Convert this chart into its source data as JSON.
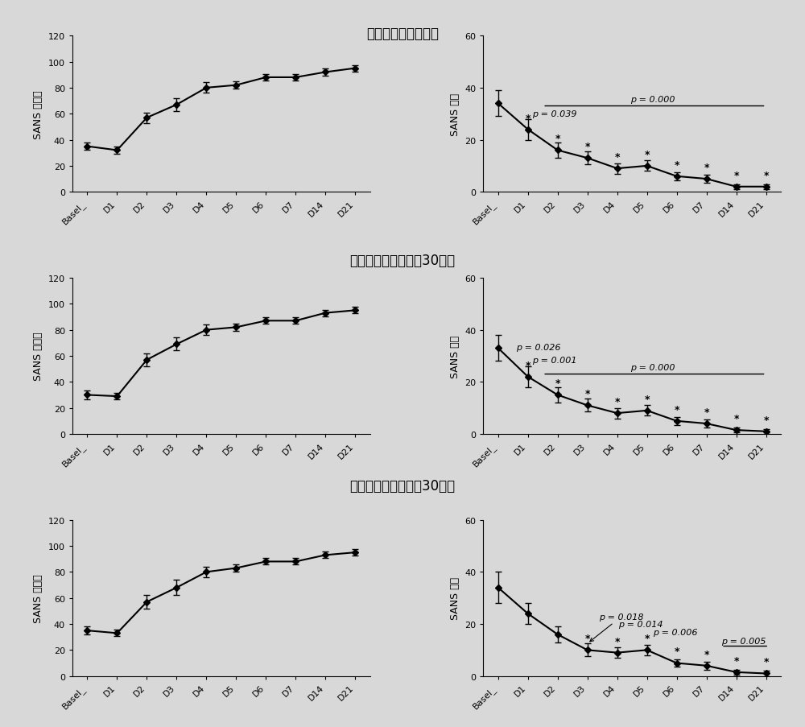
{
  "x_labels": [
    "Basel_",
    "D1",
    "D2",
    "D3",
    "D4",
    "D5",
    "D6",
    "D7",
    "D14",
    "D21"
  ],
  "x_indices": [
    0,
    1,
    2,
    3,
    4,
    5,
    6,
    7,
    8,
    9
  ],
  "left_ylabel": "SANS 减分率",
  "right_ylabel_1": "SANS 评分",
  "right_ylabel_23": "SANS 分数",
  "titles": [
    "阴性症状全部受试者",
    "距末次吸毒时间大于30天者",
    "距末次吸毒时间小于30天者"
  ],
  "left_y": [
    35,
    32,
    57,
    67,
    80,
    82,
    88,
    88,
    92,
    95
  ],
  "left_y_err": [
    3,
    2.5,
    4,
    5,
    4,
    3,
    2.5,
    2.5,
    2.5,
    2.5
  ],
  "left2_y": [
    30,
    29,
    57,
    69,
    80,
    82,
    87,
    87,
    93,
    95
  ],
  "left2_y_err": [
    3.5,
    2.5,
    5,
    5,
    4,
    3,
    2.5,
    2.5,
    2.5,
    2.5
  ],
  "left3_y": [
    35,
    33,
    57,
    68,
    80,
    83,
    88,
    88,
    93,
    95
  ],
  "left3_y_err": [
    3,
    2.5,
    5,
    6,
    4,
    3,
    2.5,
    2.5,
    2.5,
    2.5
  ],
  "right1_y": [
    34,
    24,
    16,
    13,
    9,
    10,
    6,
    5,
    2,
    2
  ],
  "right1_y_err": [
    5,
    4,
    3,
    2.5,
    2,
    2,
    1.5,
    1.5,
    1,
    1
  ],
  "right2_y": [
    33,
    22,
    15,
    11,
    8,
    9,
    5,
    4,
    1.5,
    1
  ],
  "right2_y_err": [
    5,
    4,
    3,
    2.5,
    2,
    2,
    1.5,
    1.5,
    1,
    1
  ],
  "right3_y": [
    34,
    24,
    16,
    10,
    9,
    10,
    5,
    4,
    1.5,
    1
  ],
  "right3_y_err": [
    6,
    4,
    3,
    2.5,
    2,
    2,
    1.5,
    1.5,
    1,
    1
  ],
  "star_positions_r1": [
    1,
    2,
    3,
    4,
    5,
    6,
    7,
    8,
    9
  ],
  "star_positions_r2": [
    1,
    2,
    3,
    4,
    5,
    6,
    7,
    8,
    9
  ],
  "star_positions_r3": [
    3,
    4,
    5,
    6,
    7,
    8,
    9
  ],
  "bg_color": "#d8d8d8",
  "line_color": "black",
  "marker": "D",
  "marker_size": 4,
  "font_size_title": 12,
  "font_size_label": 9,
  "font_size_tick": 8,
  "font_size_annot": 8
}
